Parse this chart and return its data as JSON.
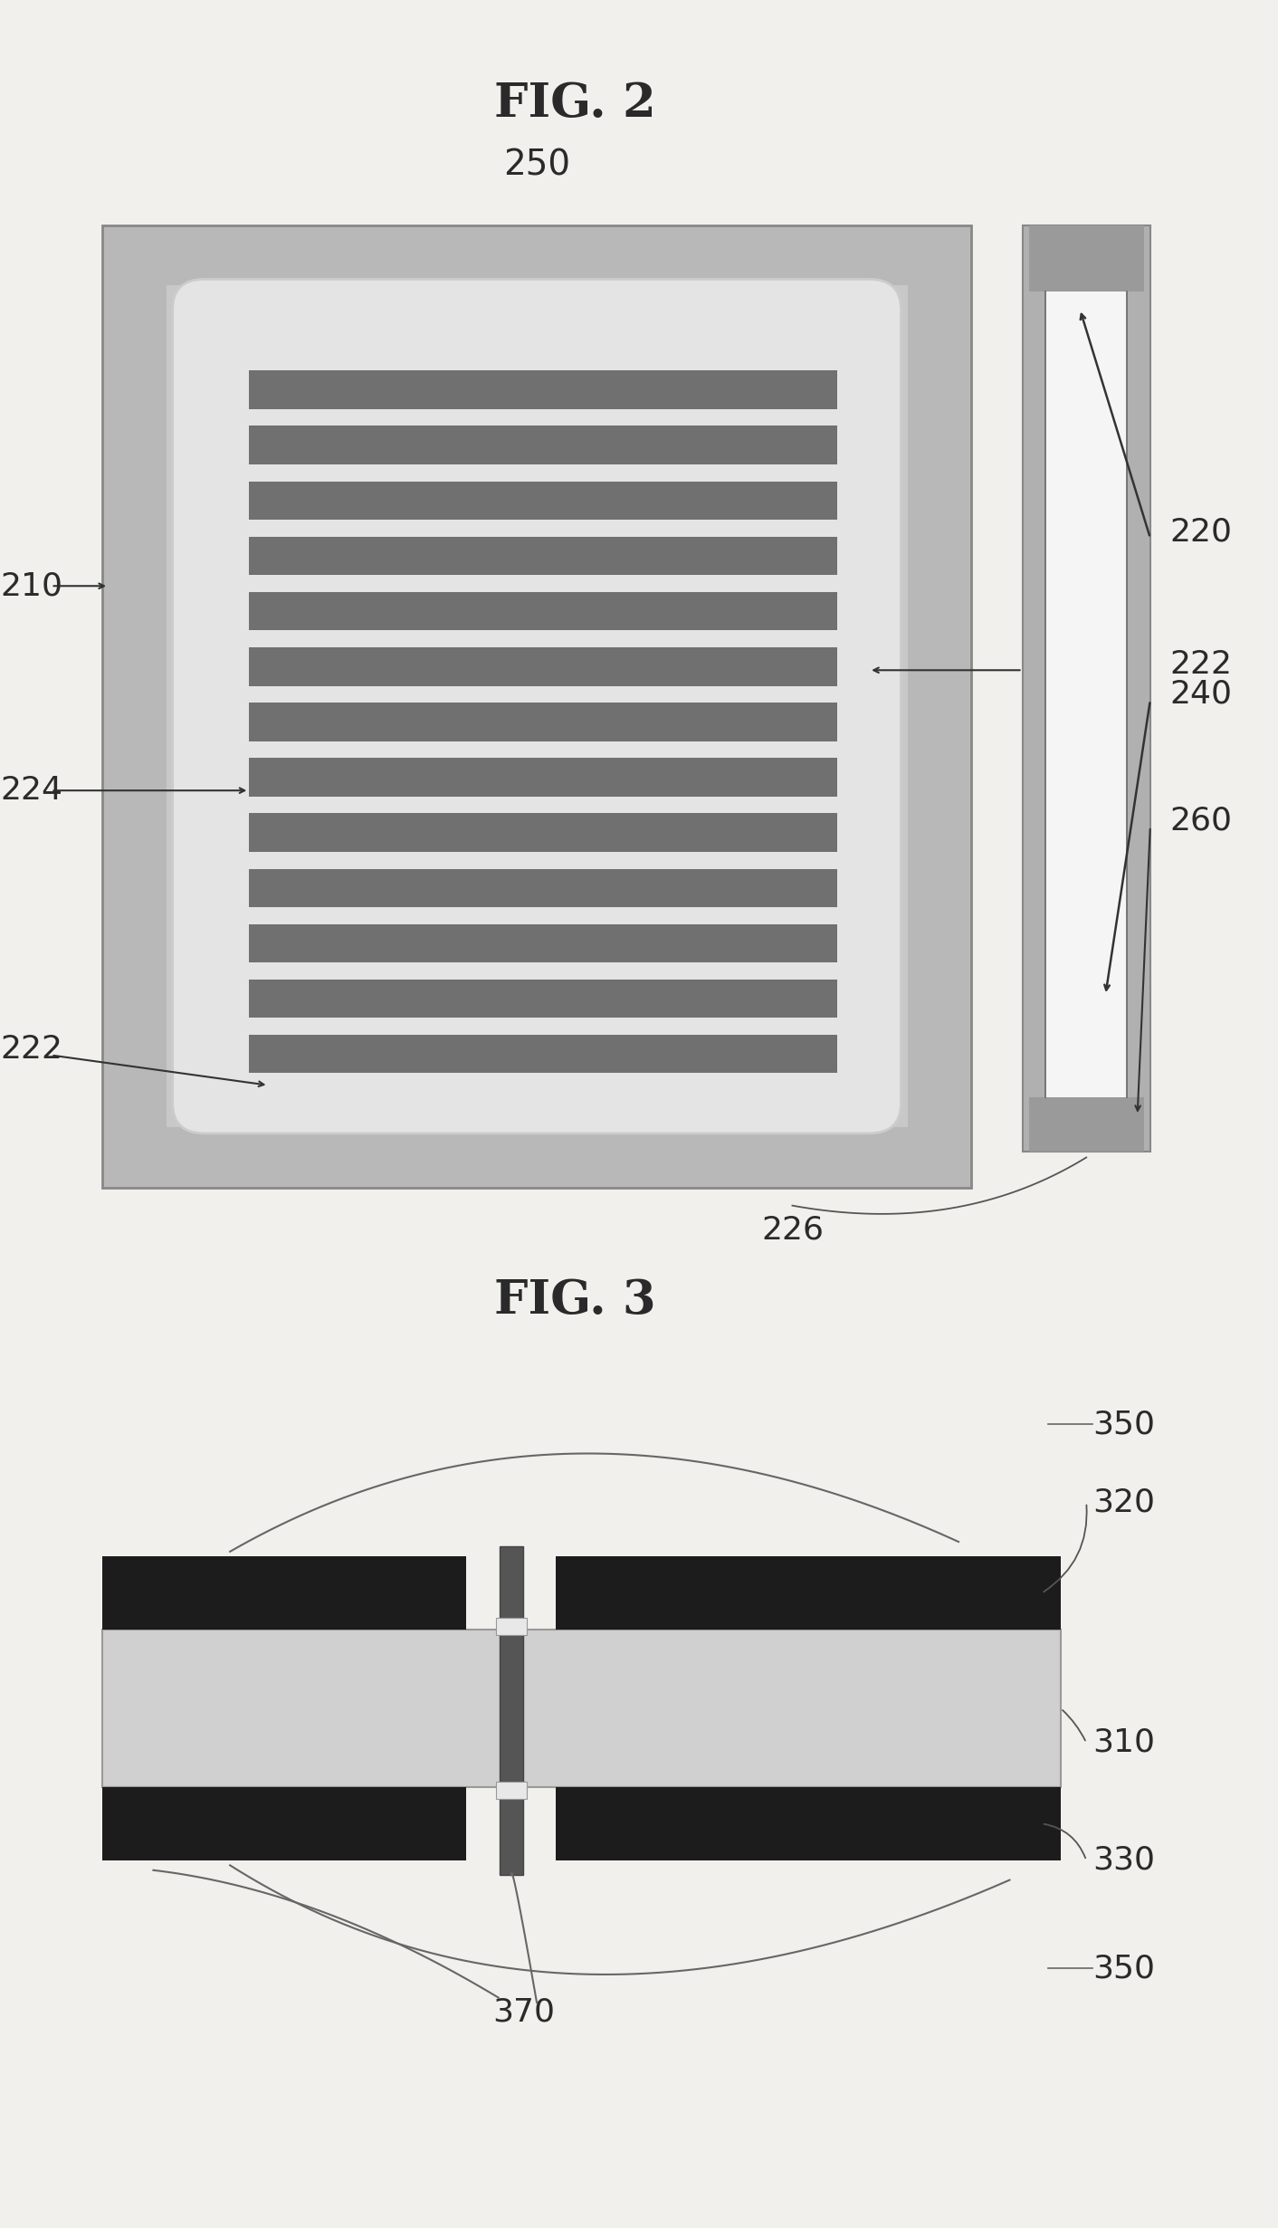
{
  "fig_title_2": "FIG. 2",
  "fig_title_3": "FIG. 3",
  "bg_color": "#f2f0ec",
  "label_color": "#2a2a2a",
  "fig2": {
    "outer_box_color": "#b0b0b0",
    "inner_bg_color": "#d8d8d8",
    "rounded_bg_color": "#e8e8e8",
    "stripe_dark": "#707070",
    "n_stripes": 13,
    "side_outer_color": "#b0b0b0",
    "side_white": "#ffffff",
    "side_cap_color": "#a0a0a0"
  },
  "fig3": {
    "main_color": "#d0d0d0",
    "bar_color": "#1c1c1c",
    "connector_color": "#555555",
    "connector_light": "#e0e0e0"
  }
}
